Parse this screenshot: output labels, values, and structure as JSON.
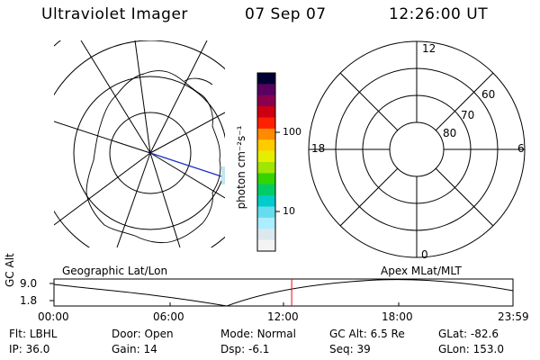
{
  "header": {
    "title": "Ultraviolet Imager",
    "date": "07 Sep 07",
    "time": "12:26:00 UT"
  },
  "colorbar": {
    "unit_label": "photon cm⁻²s⁻¹",
    "ticks": [
      "100",
      "10"
    ],
    "colors": [
      "#000033",
      "#5a0060",
      "#8a0050",
      "#cc0010",
      "#ff2000",
      "#ff8a00",
      "#ffcc00",
      "#e6ee00",
      "#a0e600",
      "#33d400",
      "#00cc66",
      "#00cccc",
      "#66ddee",
      "#aaeeff",
      "#dde8ee",
      "#f4f4f4"
    ]
  },
  "geographic_map": {
    "caption": "Geographic Lat/Lon"
  },
  "polar_plot": {
    "caption": "Apex MLat/MLT",
    "mlt_labels": {
      "top": "12",
      "right": "6",
      "bottom": "0",
      "left": "18"
    },
    "lat_labels": [
      "60",
      "70",
      "80"
    ]
  },
  "timeline": {
    "axis_label": "GC Alt",
    "y_ticks": [
      "9.0",
      "1.8"
    ],
    "x_ticks": [
      "00:00",
      "06:00",
      "12:00",
      "18:00",
      "23:59"
    ],
    "current_time_hours": 12.43,
    "marker_color": "#ff0000"
  },
  "footer": {
    "row1": [
      {
        "key": "Flt:",
        "value": "LBHL"
      },
      {
        "key": "Door:",
        "value": "Open"
      },
      {
        "key": "Mode:",
        "value": "Normal"
      },
      {
        "key": "GC Alt:",
        "value": "6.5 Re"
      },
      {
        "key": "GLat:",
        "value": "-82.6"
      }
    ],
    "row2": [
      {
        "key": "IP:",
        "value": "36.0"
      },
      {
        "key": "Gain:",
        "value": "14"
      },
      {
        "key": "Dsp:",
        "value": "-6.1"
      },
      {
        "key": "Seq:",
        "value": "39"
      },
      {
        "key": "GLon:",
        "value": "153.0"
      }
    ]
  }
}
